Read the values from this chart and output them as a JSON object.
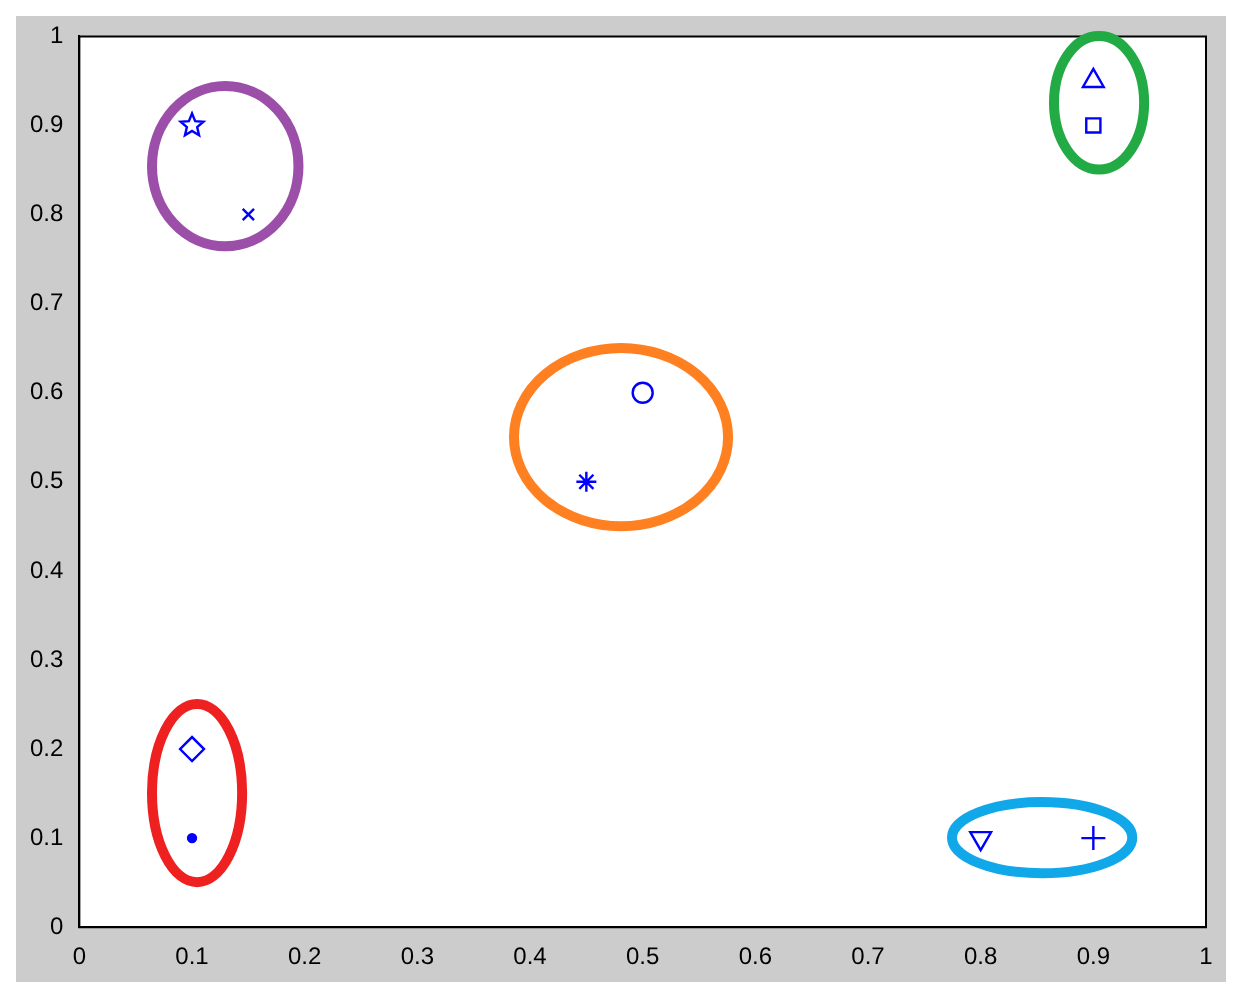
{
  "chart_data": {
    "type": "scatter",
    "xlim": [
      0,
      1
    ],
    "ylim": [
      0,
      1
    ],
    "xticks": [
      0,
      0.1,
      0.2,
      0.3,
      0.4,
      0.5,
      0.6,
      0.7,
      0.8,
      0.9,
      1
    ],
    "yticks": [
      0,
      0.1,
      0.2,
      0.3,
      0.4,
      0.5,
      0.6,
      0.7,
      0.8,
      0.9,
      1
    ],
    "grid": false,
    "legend": false,
    "series": [
      {
        "color": "#0000ff",
        "marker": "star",
        "x": [
          0.1
        ],
        "values": [
          0.9
        ]
      },
      {
        "color": "#0000ff",
        "marker": "x",
        "x": [
          0.15
        ],
        "values": [
          0.8
        ]
      },
      {
        "color": "#0000ff",
        "marker": "triangle",
        "x": [
          0.9
        ],
        "values": [
          0.95
        ]
      },
      {
        "color": "#0000ff",
        "marker": "square",
        "x": [
          0.9
        ],
        "values": [
          0.9
        ]
      },
      {
        "color": "#0000ff",
        "marker": "circle",
        "x": [
          0.5
        ],
        "values": [
          0.6
        ]
      },
      {
        "color": "#0000ff",
        "marker": "cross",
        "x": [
          0.45
        ],
        "values": [
          0.5
        ]
      },
      {
        "color": "#0000ff",
        "marker": "diamond",
        "x": [
          0.1
        ],
        "values": [
          0.2
        ]
      },
      {
        "color": "#0000ff",
        "marker": "dot",
        "x": [
          0.1
        ],
        "values": [
          0.1
        ]
      },
      {
        "color": "#0000ff",
        "marker": "triangle-down",
        "x": [
          0.8
        ],
        "values": [
          0.1
        ]
      },
      {
        "color": "#0000ff",
        "marker": "plus",
        "x": [
          0.9
        ],
        "values": [
          0.1
        ]
      }
    ]
  }
}
